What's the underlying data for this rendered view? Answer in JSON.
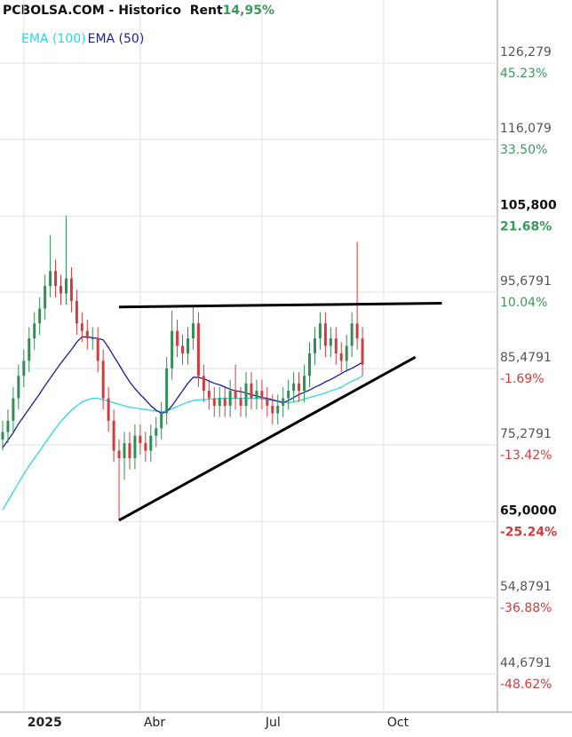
{
  "chart_data": {
    "type": "candlestick",
    "title": "PCBOLSA.COM - Historico  Rent",
    "return": {
      "value": 14.95,
      "label": "14,95%"
    },
    "categories": [
      null,
      null,
      null,
      null,
      "2025",
      null,
      null,
      null,
      null,
      null,
      null,
      null,
      null,
      null,
      null,
      null,
      null,
      null,
      null,
      null,
      null,
      null,
      null,
      null,
      null,
      null,
      "Abr",
      null,
      null,
      null,
      null,
      null,
      null,
      null,
      null,
      null,
      null,
      null,
      null,
      null,
      null,
      null,
      null,
      null,
      null,
      null,
      null,
      null,
      null,
      "Jul",
      null,
      null,
      null,
      null,
      null,
      null,
      null,
      null,
      null,
      null,
      null,
      null,
      null,
      null,
      null,
      null,
      null,
      null,
      null,
      null,
      null,
      null,
      "Oct",
      null,
      null,
      null,
      null,
      null,
      null,
      null,
      null,
      null,
      null,
      null,
      null,
      null,
      null,
      null,
      null,
      null,
      null,
      null,
      null,
      null
    ],
    "open": [
      76,
      77,
      78.5,
      81.5,
      84.5,
      86.5,
      89.5,
      91.5,
      93.5,
      96.5,
      98.5,
      96.5,
      95.5,
      97.5,
      94.5,
      91.5,
      90.5,
      89.5,
      89.5,
      86.5,
      81.5,
      78.5,
      74.5,
      73.5,
      75.5,
      73.5,
      76.5,
      75.5,
      74.5,
      76.5,
      77.5,
      79.5,
      85.5,
      90.5,
      88.5,
      87.5,
      89.5,
      91.5,
      84.5,
      82.5,
      81.5,
      80.5,
      81.5,
      80.5,
      82.5,
      81.5,
      80.5,
      83.5,
      81.5,
      82.5,
      81.5,
      80.5,
      79.5,
      80.5,
      81.5,
      82.5,
      83.5,
      82.5,
      84.5,
      87.5,
      89.5,
      91.5,
      88.5,
      89.5,
      87.5,
      86.5,
      88.5,
      91.5,
      89.5,
      null,
      null,
      null,
      null,
      null,
      null,
      null,
      null,
      null,
      null,
      null,
      null,
      null,
      null,
      null,
      null,
      null,
      null,
      null,
      null,
      null,
      null,
      null,
      null,
      null
    ],
    "high": [
      78.5,
      80,
      83,
      86,
      88,
      91,
      93,
      95,
      98,
      103.3,
      100,
      98,
      105.9,
      99,
      96,
      93,
      92,
      91,
      91,
      88,
      83,
      80,
      76,
      77,
      77,
      78,
      78,
      77,
      78,
      79,
      81,
      87,
      93.2,
      92,
      90,
      91,
      93.8,
      93,
      86,
      84,
      83,
      83,
      83,
      84,
      86,
      83,
      85,
      85,
      84,
      84,
      83,
      82,
      82,
      83,
      84,
      85,
      85,
      86,
      89,
      91,
      93,
      93,
      91,
      91,
      89,
      90,
      93,
      102.4,
      91,
      null,
      null,
      null,
      null,
      null,
      null,
      null,
      null,
      null,
      null,
      null,
      null,
      null,
      null,
      null,
      null,
      null,
      null,
      null,
      null,
      null,
      null,
      null,
      null,
      null
    ],
    "low": [
      74.5,
      75.5,
      77,
      80,
      83,
      85,
      88,
      90,
      92,
      95,
      95,
      94,
      94,
      93,
      90,
      89,
      88,
      88,
      85,
      80,
      77,
      73,
      65.2,
      70.6,
      72,
      72,
      74,
      73,
      73,
      75,
      76,
      78,
      84,
      87,
      86,
      86,
      88,
      83,
      81,
      80,
      79,
      79,
      79,
      79,
      80,
      79,
      79,
      80,
      80,
      80,
      79,
      78,
      78,
      79,
      80,
      81,
      81,
      81,
      83,
      86,
      88,
      87,
      87,
      86,
      85,
      85,
      87,
      88,
      84.5,
      null,
      null,
      null,
      null,
      null,
      null,
      null,
      null,
      null,
      null,
      null,
      null,
      null,
      null,
      null,
      null,
      null,
      null,
      null,
      null,
      null,
      null,
      null,
      null,
      null
    ],
    "close": [
      77,
      78.5,
      81.5,
      84.5,
      86.5,
      89.5,
      91.5,
      93.5,
      96.5,
      98.5,
      96.5,
      95.5,
      97.5,
      94.5,
      91.5,
      90.5,
      89.5,
      89.5,
      86.5,
      81.5,
      78.5,
      74.5,
      73.5,
      75.5,
      73.5,
      76.5,
      75.5,
      74.5,
      76.5,
      77.5,
      79.5,
      85.5,
      90.5,
      88.5,
      87.5,
      89.5,
      91.5,
      84.5,
      82.5,
      81.5,
      80.5,
      81.5,
      80.5,
      82.5,
      81.5,
      80.5,
      83.5,
      81.5,
      82.5,
      81.5,
      80.5,
      79.5,
      80.5,
      81.5,
      82.5,
      83.5,
      82.5,
      84.5,
      87.5,
      89.5,
      91.5,
      88.5,
      89.5,
      87.5,
      86.5,
      88.5,
      91.5,
      89.5,
      86,
      null,
      null,
      null,
      null,
      null,
      null,
      null,
      null,
      null,
      null,
      null,
      null,
      null,
      null,
      null,
      null,
      null,
      null,
      null,
      null,
      null,
      null,
      null,
      null,
      null
    ],
    "up_color": "#2f8f55",
    "down_color": "#d23c3c",
    "series": [
      {
        "name": "EMA (100)",
        "color": "#2ed8e0",
        "values": [
          66.6,
          67.8,
          69,
          70.2,
          71.4,
          72.5,
          73.5,
          74.5,
          75.5,
          76.5,
          77.5,
          78.4,
          79.2,
          79.9,
          80.5,
          81,
          81.3,
          81.5,
          81.5,
          81.3,
          81.1,
          80.9,
          80.7,
          80.5,
          80.3,
          80.2,
          80.1,
          80,
          79.9,
          79.8,
          79.7,
          79.8,
          80.1,
          80.4,
          80.7,
          81,
          81.2,
          81.3,
          81.3,
          81.4,
          81.4,
          81.5,
          81.5,
          81.5,
          81.5,
          81.5,
          81.5,
          81.5,
          81.5,
          81.4,
          81.3,
          81.2,
          81.1,
          81,
          80.9,
          81,
          81.2,
          81.4,
          81.6,
          81.8,
          82,
          82.2,
          82.5,
          82.7,
          83,
          83.4,
          83.8,
          84.1,
          84.5,
          null,
          null,
          null,
          null,
          null,
          null,
          null,
          null,
          null,
          null,
          null,
          null,
          null,
          null,
          null,
          null,
          null,
          null,
          null,
          null,
          null,
          null,
          null,
          null,
          null
        ]
      },
      {
        "name": "EMA (50)",
        "color": "#1c1c9c",
        "values": [
          74.9,
          75.9,
          76.9,
          78.1,
          79.1,
          80.1,
          81.1,
          82.1,
          83.2,
          84.2,
          85.2,
          86.2,
          87.1,
          88,
          89,
          89.7,
          89.7,
          89.6,
          89.5,
          89.3,
          88.3,
          87.1,
          86,
          84.8,
          83.7,
          82.8,
          82,
          81.3,
          80.5,
          79.9,
          79.5,
          79.7,
          80.5,
          81.5,
          82.5,
          83.5,
          84.3,
          84.3,
          84.1,
          83.8,
          83.5,
          83.3,
          83,
          82.7,
          82.5,
          82.4,
          82.2,
          82,
          81.8,
          81.6,
          81.5,
          81.3,
          81.1,
          80.9,
          81.2,
          81.6,
          82,
          82.3,
          82.6,
          83,
          83.3,
          83.7,
          84,
          84.4,
          84.8,
          85.2,
          85.5,
          85.9,
          86.3,
          null,
          null,
          null,
          null,
          null,
          null,
          null,
          null,
          null,
          null,
          null,
          null,
          null,
          null,
          null,
          null,
          null,
          null,
          null,
          null,
          null,
          null,
          null,
          null,
          null
        ]
      }
    ],
    "trendlines": [
      {
        "from": 22,
        "to": 83,
        "values": [
          93.7,
          94.2
        ]
      },
      {
        "from": 22,
        "to": 78,
        "values": [
          65.2,
          87.0
        ]
      }
    ],
    "ylim": [
      39.58,
      134.7
    ],
    "yticks": [
      {
        "value": 126.279,
        "label": "126,279"
      },
      {
        "value": 116.079,
        "label": "116,079"
      },
      {
        "value": 105.8,
        "label": "105,800",
        "highlight": true
      },
      {
        "value": 95.6791,
        "label": "95,6791"
      },
      {
        "value": 85.4791,
        "label": "85,4791"
      },
      {
        "value": 75.2791,
        "label": "75,2791"
      },
      {
        "value": 65.0,
        "label": "65,0000",
        "highlight": true
      },
      {
        "value": 54.8791,
        "label": "54,8791"
      },
      {
        "value": 44.6791,
        "label": "44,6791"
      }
    ],
    "y2lim": [
      -54.48,
      54.92
    ],
    "y2ticks": [
      {
        "value": 45.23,
        "label": "45.23%"
      },
      {
        "value": 33.5,
        "label": "33.50%"
      },
      {
        "value": 21.68,
        "label": "21.68%",
        "highlight": true
      },
      {
        "value": 10.04,
        "label": "10.04%"
      },
      {
        "value": -1.69,
        "label": "-1.69%"
      },
      {
        "value": -13.42,
        "label": "-13.42%"
      },
      {
        "value": -25.24,
        "label": "-25.24%",
        "highlight": true
      },
      {
        "value": -36.88,
        "label": "-36.88%"
      },
      {
        "value": -48.62,
        "label": "-48.62%"
      }
    ],
    "grid": true,
    "legend": "top-left"
  }
}
